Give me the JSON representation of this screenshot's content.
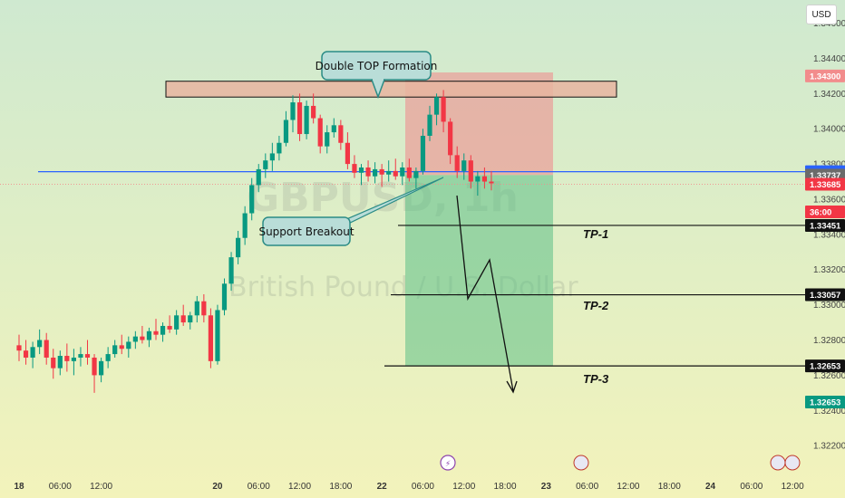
{
  "currency": "USD",
  "watermark": {
    "symbol": "GBPUSD, 1h",
    "name": "British Pound / U.S. Dollar"
  },
  "annotations": {
    "double_top": "Double TOP Formation",
    "support_breakout": "Support Breakout",
    "tp1": "TP-1",
    "tp2": "TP-2",
    "tp3": "TP-3"
  },
  "colors": {
    "up": "#089981",
    "down": "#f23645",
    "support_line": "#2962ff",
    "stop_zone": "#f0868a",
    "target_zone": "#5cbf86",
    "resistance_zone": "#e8b5a0"
  },
  "price_tags": [
    {
      "label": "1.34300",
      "value": 1.343,
      "bg": "#f28c8c",
      "fg": "#ffffff"
    },
    {
      "label": "1.33756",
      "value": 1.33756,
      "bg": "#2962ff",
      "fg": "#ffffff"
    },
    {
      "label": "1.33737",
      "value": 1.33737,
      "bg": "#6b6b6b",
      "fg": "#ffffff"
    },
    {
      "label": "1.33685",
      "value": 1.33685,
      "bg": "#f23645",
      "fg": "#ffffff"
    },
    {
      "label": "36:00",
      "value": 1.3361,
      "bg": "#f23645",
      "fg": "#ffffff"
    },
    {
      "label": "1.33451",
      "value": 1.33451,
      "bg": "#111111",
      "fg": "#ffffff"
    },
    {
      "label": "1.33057",
      "value": 1.33057,
      "bg": "#111111",
      "fg": "#ffffff"
    },
    {
      "label": "1.32653",
      "value": 1.32653,
      "bg": "#111111",
      "fg": "#ffffff"
    },
    {
      "label": "1.32653",
      "value": 1.3256,
      "bg": "#089981",
      "fg": "#ffffff"
    }
  ],
  "chart_data": {
    "type": "candlestick",
    "x_ticks": [
      {
        "label": "18",
        "day": true,
        "i": 0
      },
      {
        "label": "06:00",
        "day": false,
        "i": 6
      },
      {
        "label": "12:00",
        "day": false,
        "i": 12
      },
      {
        "label": "20",
        "day": true,
        "i": 29
      },
      {
        "label": "06:00",
        "day": false,
        "i": 35
      },
      {
        "label": "12:00",
        "day": false,
        "i": 41
      },
      {
        "label": "18:00",
        "day": false,
        "i": 47
      },
      {
        "label": "22",
        "day": true,
        "i": 53
      },
      {
        "label": "06:00",
        "day": false,
        "i": 59
      },
      {
        "label": "12:00",
        "day": false,
        "i": 65
      },
      {
        "label": "18:00",
        "day": false,
        "i": 71
      },
      {
        "label": "23",
        "day": true,
        "i": 77
      },
      {
        "label": "06:00",
        "day": false,
        "i": 83
      },
      {
        "label": "12:00",
        "day": false,
        "i": 89
      },
      {
        "label": "18:00",
        "day": false,
        "i": 95
      },
      {
        "label": "24",
        "day": true,
        "i": 101
      },
      {
        "label": "06:00",
        "day": false,
        "i": 107
      },
      {
        "label": "12:00",
        "day": false,
        "i": 113
      }
    ],
    "y_ticks": [
      "1.34600",
      "1.34400",
      "1.34200",
      "1.34000",
      "1.33800",
      "1.33600",
      "1.33400",
      "1.33200",
      "1.33000",
      "1.32800",
      "1.32600",
      "1.32400",
      "1.32200"
    ],
    "y_tick_values": [
      1.346,
      1.344,
      1.342,
      1.34,
      1.338,
      1.336,
      1.334,
      1.332,
      1.33,
      1.328,
      1.326,
      1.324,
      1.322
    ],
    "ylim": [
      1.3217,
      1.3468
    ],
    "candles": [
      [
        1.3277,
        1.3283,
        1.3268,
        1.3274
      ],
      [
        1.3274,
        1.328,
        1.3266,
        1.327
      ],
      [
        1.327,
        1.3279,
        1.3264,
        1.3276
      ],
      [
        1.3276,
        1.3286,
        1.3272,
        1.328
      ],
      [
        1.328,
        1.3284,
        1.3266,
        1.327
      ],
      [
        1.327,
        1.3275,
        1.3258,
        1.3264
      ],
      [
        1.3264,
        1.3274,
        1.326,
        1.3271
      ],
      [
        1.3271,
        1.3278,
        1.3262,
        1.3268
      ],
      [
        1.3268,
        1.3275,
        1.326,
        1.327
      ],
      [
        1.327,
        1.3276,
        1.3265,
        1.3272
      ],
      [
        1.3272,
        1.328,
        1.3266,
        1.327
      ],
      [
        1.327,
        1.3272,
        1.325,
        1.326
      ],
      [
        1.326,
        1.327,
        1.3256,
        1.3268
      ],
      [
        1.3268,
        1.3276,
        1.3264,
        1.3272
      ],
      [
        1.3272,
        1.328,
        1.327,
        1.3277
      ],
      [
        1.3277,
        1.3283,
        1.3272,
        1.3275
      ],
      [
        1.3275,
        1.3282,
        1.327,
        1.3279
      ],
      [
        1.3279,
        1.3285,
        1.3275,
        1.3282
      ],
      [
        1.3282,
        1.3288,
        1.3278,
        1.328
      ],
      [
        1.328,
        1.3287,
        1.3276,
        1.3285
      ],
      [
        1.3285,
        1.3292,
        1.328,
        1.3283
      ],
      [
        1.3283,
        1.329,
        1.3279,
        1.3288
      ],
      [
        1.3288,
        1.3294,
        1.3284,
        1.3286
      ],
      [
        1.3286,
        1.3297,
        1.3283,
        1.3294
      ],
      [
        1.3294,
        1.33,
        1.3288,
        1.329
      ],
      [
        1.329,
        1.3296,
        1.3286,
        1.3294
      ],
      [
        1.3294,
        1.3305,
        1.329,
        1.3302
      ],
      [
        1.3302,
        1.3306,
        1.329,
        1.3294
      ],
      [
        1.3294,
        1.3298,
        1.3264,
        1.3268
      ],
      [
        1.3268,
        1.33,
        1.3266,
        1.3297
      ],
      [
        1.3297,
        1.3315,
        1.3294,
        1.3312
      ],
      [
        1.3312,
        1.333,
        1.3308,
        1.3327
      ],
      [
        1.3327,
        1.3342,
        1.3323,
        1.3338
      ],
      [
        1.3338,
        1.3356,
        1.3334,
        1.3352
      ],
      [
        1.3352,
        1.3372,
        1.3348,
        1.3368
      ],
      [
        1.3368,
        1.338,
        1.3364,
        1.3377
      ],
      [
        1.3377,
        1.3386,
        1.3372,
        1.3382
      ],
      [
        1.3382,
        1.3392,
        1.3376,
        1.3386
      ],
      [
        1.3386,
        1.3396,
        1.3382,
        1.3392
      ],
      [
        1.3392,
        1.341,
        1.339,
        1.3405
      ],
      [
        1.3405,
        1.3419,
        1.3398,
        1.3415
      ],
      [
        1.3415,
        1.342,
        1.3393,
        1.3397
      ],
      [
        1.3397,
        1.3416,
        1.3394,
        1.3413
      ],
      [
        1.3413,
        1.342,
        1.3403,
        1.3406
      ],
      [
        1.3406,
        1.3408,
        1.3386,
        1.339
      ],
      [
        1.339,
        1.3402,
        1.3386,
        1.3398
      ],
      [
        1.3398,
        1.3406,
        1.3395,
        1.3402
      ],
      [
        1.3402,
        1.3405,
        1.3388,
        1.3392
      ],
      [
        1.3392,
        1.3398,
        1.3377,
        1.338
      ],
      [
        1.338,
        1.3385,
        1.3372,
        1.3375
      ],
      [
        1.3375,
        1.338,
        1.3368,
        1.3378
      ],
      [
        1.3378,
        1.3382,
        1.337,
        1.3373
      ],
      [
        1.3373,
        1.3381,
        1.3369,
        1.3377
      ],
      [
        1.3377,
        1.338,
        1.3367,
        1.3374
      ],
      [
        1.3374,
        1.3382,
        1.337,
        1.3376
      ],
      [
        1.3376,
        1.3383,
        1.3371,
        1.3373
      ],
      [
        1.3373,
        1.3381,
        1.3368,
        1.3378
      ],
      [
        1.3378,
        1.3383,
        1.337,
        1.3372
      ],
      [
        1.3372,
        1.3378,
        1.3366,
        1.3376
      ],
      [
        1.3376,
        1.34,
        1.3374,
        1.3396
      ],
      [
        1.3396,
        1.3413,
        1.3393,
        1.3408
      ],
      [
        1.3408,
        1.342,
        1.3402,
        1.3418
      ],
      [
        1.3418,
        1.3422,
        1.3398,
        1.3404
      ],
      [
        1.3404,
        1.3406,
        1.338,
        1.3385
      ],
      [
        1.3385,
        1.339,
        1.3372,
        1.3376
      ],
      [
        1.3376,
        1.3386,
        1.3371,
        1.3382
      ],
      [
        1.3382,
        1.3385,
        1.3366,
        1.337
      ],
      [
        1.337,
        1.3376,
        1.3362,
        1.3373
      ],
      [
        1.3373,
        1.3378,
        1.3366,
        1.337
      ],
      [
        1.337,
        1.3376,
        1.3365,
        1.3369
      ]
    ],
    "support_level": 1.33756,
    "resistance_zone": [
      1.3418,
      1.3427
    ],
    "stop_zone": [
      1.33737,
      1.3432
    ],
    "target_zone": [
      1.32653,
      1.33737
    ],
    "targets": [
      1.33451,
      1.33057,
      1.32653
    ]
  }
}
